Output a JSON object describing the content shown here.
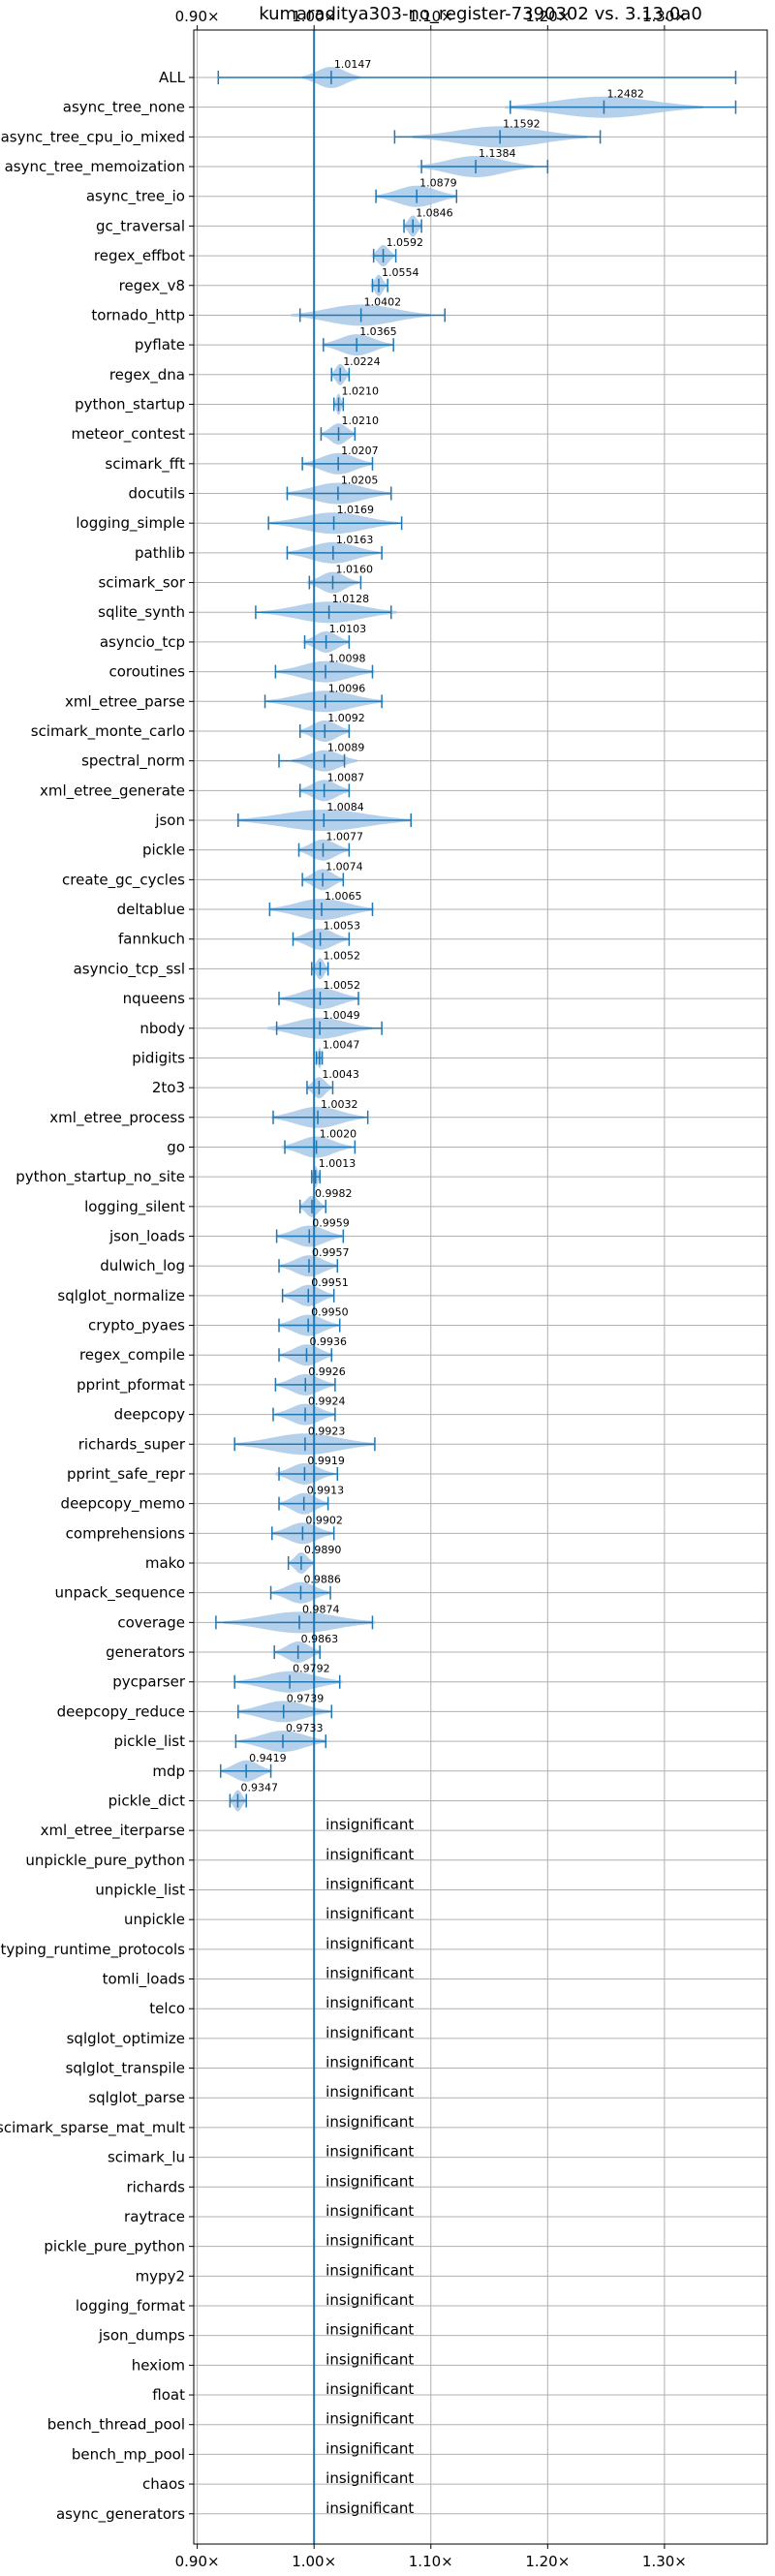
{
  "chart_data": {
    "type": "violin",
    "title": "kumaraditya303-no_register-7390302 vs. 3.13.0a0",
    "x_ticks": [
      "0.90×",
      "1.00×",
      "1.10×",
      "1.20×",
      "1.30×"
    ],
    "x_tick_values": [
      0.9,
      1.0,
      1.1,
      1.2,
      1.3
    ],
    "xlim": [
      0.897,
      1.388
    ],
    "reference_line": 1.0,
    "grid": true,
    "accent_color": "#1f77b4",
    "violin_color": "#a8c8e6",
    "insignificant_text": "insignificant",
    "rows": [
      {
        "name": "ALL",
        "mean": 1.0147,
        "label": "1.0147",
        "lo": 0.918,
        "hi": 1.361,
        "spread": 0.025
      },
      {
        "name": "async_tree_none",
        "mean": 1.2482,
        "label": "1.2482",
        "lo": 1.168,
        "hi": 1.361,
        "spread": 0.085
      },
      {
        "name": "async_tree_cpu_io_mixed",
        "mean": 1.1592,
        "label": "1.1592",
        "lo": 1.069,
        "hi": 1.245,
        "spread": 0.075
      },
      {
        "name": "async_tree_memoization",
        "mean": 1.1384,
        "label": "1.1384",
        "lo": 1.092,
        "hi": 1.2,
        "spread": 0.05
      },
      {
        "name": "async_tree_io",
        "mean": 1.0879,
        "label": "1.0879",
        "lo": 1.053,
        "hi": 1.122,
        "spread": 0.035
      },
      {
        "name": "gc_traversal",
        "mean": 1.0846,
        "label": "1.0846",
        "lo": 1.077,
        "hi": 1.092,
        "spread": 0.008
      },
      {
        "name": "regex_effbot",
        "mean": 1.0592,
        "label": "1.0592",
        "lo": 1.051,
        "hi": 1.07,
        "spread": 0.01
      },
      {
        "name": "regex_v8",
        "mean": 1.0554,
        "label": "1.0554",
        "lo": 1.05,
        "hi": 1.063,
        "spread": 0.007
      },
      {
        "name": "tornado_http",
        "mean": 1.0402,
        "label": "1.0402",
        "lo": 0.988,
        "hi": 1.112,
        "spread": 0.06
      },
      {
        "name": "pyflate",
        "mean": 1.0365,
        "label": "1.0365",
        "lo": 1.008,
        "hi": 1.068,
        "spread": 0.03
      },
      {
        "name": "regex_dna",
        "mean": 1.0224,
        "label": "1.0224",
        "lo": 1.015,
        "hi": 1.03,
        "spread": 0.008
      },
      {
        "name": "python_startup",
        "mean": 1.021,
        "label": "1.0210",
        "lo": 1.017,
        "hi": 1.025,
        "spread": 0.004
      },
      {
        "name": "meteor_contest",
        "mean": 1.021,
        "label": "1.0210",
        "lo": 1.006,
        "hi": 1.035,
        "spread": 0.015
      },
      {
        "name": "scimark_fft",
        "mean": 1.0207,
        "label": "1.0207",
        "lo": 0.99,
        "hi": 1.05,
        "spread": 0.03
      },
      {
        "name": "docutils",
        "mean": 1.0205,
        "label": "1.0205",
        "lo": 0.977,
        "hi": 1.066,
        "spread": 0.045
      },
      {
        "name": "logging_simple",
        "mean": 1.0169,
        "label": "1.0169",
        "lo": 0.961,
        "hi": 1.075,
        "spread": 0.055
      },
      {
        "name": "pathlib",
        "mean": 1.0163,
        "label": "1.0163",
        "lo": 0.977,
        "hi": 1.058,
        "spread": 0.04
      },
      {
        "name": "scimark_sor",
        "mean": 1.016,
        "label": "1.0160",
        "lo": 0.996,
        "hi": 1.04,
        "spread": 0.022
      },
      {
        "name": "sqlite_synth",
        "mean": 1.0128,
        "label": "1.0128",
        "lo": 0.95,
        "hi": 1.066,
        "spread": 0.058
      },
      {
        "name": "asyncio_tcp",
        "mean": 1.0103,
        "label": "1.0103",
        "lo": 0.992,
        "hi": 1.03,
        "spread": 0.02
      },
      {
        "name": "coroutines",
        "mean": 1.0098,
        "label": "1.0098",
        "lo": 0.967,
        "hi": 1.05,
        "spread": 0.042
      },
      {
        "name": "xml_etree_parse",
        "mean": 1.0096,
        "label": "1.0096",
        "lo": 0.958,
        "hi": 1.058,
        "spread": 0.05
      },
      {
        "name": "scimark_monte_carlo",
        "mean": 1.0092,
        "label": "1.0092",
        "lo": 0.988,
        "hi": 1.03,
        "spread": 0.022
      },
      {
        "name": "spectral_norm",
        "mean": 1.0089,
        "label": "1.0089",
        "lo": 0.97,
        "hi": 1.026,
        "spread": 0.028
      },
      {
        "name": "xml_etree_generate",
        "mean": 1.0087,
        "label": "1.0087",
        "lo": 0.988,
        "hi": 1.03,
        "spread": 0.022
      },
      {
        "name": "json",
        "mean": 1.0084,
        "label": "1.0084",
        "lo": 0.935,
        "hi": 1.083,
        "spread": 0.075
      },
      {
        "name": "pickle",
        "mean": 1.0077,
        "label": "1.0077",
        "lo": 0.987,
        "hi": 1.03,
        "spread": 0.022
      },
      {
        "name": "create_gc_cycles",
        "mean": 1.0074,
        "label": "1.0074",
        "lo": 0.99,
        "hi": 1.025,
        "spread": 0.018
      },
      {
        "name": "deltablue",
        "mean": 1.0065,
        "label": "1.0065",
        "lo": 0.962,
        "hi": 1.05,
        "spread": 0.045
      },
      {
        "name": "fannkuch",
        "mean": 1.0053,
        "label": "1.0053",
        "lo": 0.982,
        "hi": 1.03,
        "spread": 0.024
      },
      {
        "name": "asyncio_tcp_ssl",
        "mean": 1.0052,
        "label": "1.0052",
        "lo": 0.998,
        "hi": 1.012,
        "spread": 0.007
      },
      {
        "name": "nqueens",
        "mean": 1.0052,
        "label": "1.0052",
        "lo": 0.97,
        "hi": 1.038,
        "spread": 0.034
      },
      {
        "name": "nbody",
        "mean": 1.0049,
        "label": "1.0049",
        "lo": 0.968,
        "hi": 1.058,
        "spread": 0.045
      },
      {
        "name": "pidigits",
        "mean": 1.0047,
        "label": "1.0047",
        "lo": 1.002,
        "hi": 1.007,
        "spread": 0.003
      },
      {
        "name": "2to3",
        "mean": 1.0043,
        "label": "1.0043",
        "lo": 0.994,
        "hi": 1.016,
        "spread": 0.011
      },
      {
        "name": "xml_etree_process",
        "mean": 1.0032,
        "label": "1.0032",
        "lo": 0.965,
        "hi": 1.046,
        "spread": 0.04
      },
      {
        "name": "go",
        "mean": 1.002,
        "label": "1.0020",
        "lo": 0.975,
        "hi": 1.035,
        "spread": 0.03
      },
      {
        "name": "python_startup_no_site",
        "mean": 1.0013,
        "label": "1.0013",
        "lo": 0.998,
        "hi": 1.005,
        "spread": 0.004
      },
      {
        "name": "logging_silent",
        "mean": 0.9982,
        "label": "0.9982",
        "lo": 0.988,
        "hi": 1.01,
        "spread": 0.011
      },
      {
        "name": "json_loads",
        "mean": 0.9959,
        "label": "0.9959",
        "lo": 0.968,
        "hi": 1.025,
        "spread": 0.028
      },
      {
        "name": "dulwich_log",
        "mean": 0.9957,
        "label": "0.9957",
        "lo": 0.97,
        "hi": 1.02,
        "spread": 0.025
      },
      {
        "name": "sqlglot_normalize",
        "mean": 0.9951,
        "label": "0.9951",
        "lo": 0.973,
        "hi": 1.017,
        "spread": 0.022
      },
      {
        "name": "crypto_pyaes",
        "mean": 0.995,
        "label": "0.9950",
        "lo": 0.97,
        "hi": 1.022,
        "spread": 0.026
      },
      {
        "name": "regex_compile",
        "mean": 0.9936,
        "label": "0.9936",
        "lo": 0.97,
        "hi": 1.015,
        "spread": 0.023
      },
      {
        "name": "pprint_pformat",
        "mean": 0.9926,
        "label": "0.9926",
        "lo": 0.967,
        "hi": 1.018,
        "spread": 0.025
      },
      {
        "name": "deepcopy",
        "mean": 0.9924,
        "label": "0.9924",
        "lo": 0.965,
        "hi": 1.018,
        "spread": 0.026
      },
      {
        "name": "richards_super",
        "mean": 0.9923,
        "label": "0.9923",
        "lo": 0.932,
        "hi": 1.052,
        "spread": 0.06
      },
      {
        "name": "pprint_safe_repr",
        "mean": 0.9919,
        "label": "0.9919",
        "lo": 0.97,
        "hi": 1.02,
        "spread": 0.025
      },
      {
        "name": "deepcopy_memo",
        "mean": 0.9913,
        "label": "0.9913",
        "lo": 0.97,
        "hi": 1.012,
        "spread": 0.021
      },
      {
        "name": "comprehensions",
        "mean": 0.9902,
        "label": "0.9902",
        "lo": 0.964,
        "hi": 1.017,
        "spread": 0.026
      },
      {
        "name": "mako",
        "mean": 0.989,
        "label": "0.9890",
        "lo": 0.978,
        "hi": 1.0,
        "spread": 0.011
      },
      {
        "name": "unpack_sequence",
        "mean": 0.9886,
        "label": "0.9886",
        "lo": 0.963,
        "hi": 1.014,
        "spread": 0.025
      },
      {
        "name": "coverage",
        "mean": 0.9874,
        "label": "0.9874",
        "lo": 0.916,
        "hi": 1.05,
        "spread": 0.065
      },
      {
        "name": "generators",
        "mean": 0.9863,
        "label": "0.9863",
        "lo": 0.966,
        "hi": 1.005,
        "spread": 0.02
      },
      {
        "name": "pycparser",
        "mean": 0.9792,
        "label": "0.9792",
        "lo": 0.932,
        "hi": 1.022,
        "spread": 0.045
      },
      {
        "name": "deepcopy_reduce",
        "mean": 0.9739,
        "label": "0.9739",
        "lo": 0.935,
        "hi": 1.015,
        "spread": 0.04
      },
      {
        "name": "pickle_list",
        "mean": 0.9733,
        "label": "0.9733",
        "lo": 0.933,
        "hi": 1.01,
        "spread": 0.038
      },
      {
        "name": "mdp",
        "mean": 0.9419,
        "label": "0.9419",
        "lo": 0.92,
        "hi": 0.963,
        "spread": 0.022
      },
      {
        "name": "pickle_dict",
        "mean": 0.9347,
        "label": "0.9347",
        "lo": 0.928,
        "hi": 0.942,
        "spread": 0.007
      },
      {
        "name": "xml_etree_iterparse",
        "insignificant": true
      },
      {
        "name": "unpickle_pure_python",
        "insignificant": true
      },
      {
        "name": "unpickle_list",
        "insignificant": true
      },
      {
        "name": "unpickle",
        "insignificant": true
      },
      {
        "name": "typing_runtime_protocols",
        "insignificant": true
      },
      {
        "name": "tomli_loads",
        "insignificant": true
      },
      {
        "name": "telco",
        "insignificant": true
      },
      {
        "name": "sqlglot_optimize",
        "insignificant": true
      },
      {
        "name": "sqlglot_transpile",
        "insignificant": true
      },
      {
        "name": "sqlglot_parse",
        "insignificant": true
      },
      {
        "name": "scimark_sparse_mat_mult",
        "insignificant": true
      },
      {
        "name": "scimark_lu",
        "insignificant": true
      },
      {
        "name": "richards",
        "insignificant": true
      },
      {
        "name": "raytrace",
        "insignificant": true
      },
      {
        "name": "pickle_pure_python",
        "insignificant": true
      },
      {
        "name": "mypy2",
        "insignificant": true
      },
      {
        "name": "logging_format",
        "insignificant": true
      },
      {
        "name": "json_dumps",
        "insignificant": true
      },
      {
        "name": "hexiom",
        "insignificant": true
      },
      {
        "name": "float",
        "insignificant": true
      },
      {
        "name": "bench_thread_pool",
        "insignificant": true
      },
      {
        "name": "bench_mp_pool",
        "insignificant": true
      },
      {
        "name": "chaos",
        "insignificant": true
      },
      {
        "name": "async_generators",
        "insignificant": true
      }
    ]
  }
}
